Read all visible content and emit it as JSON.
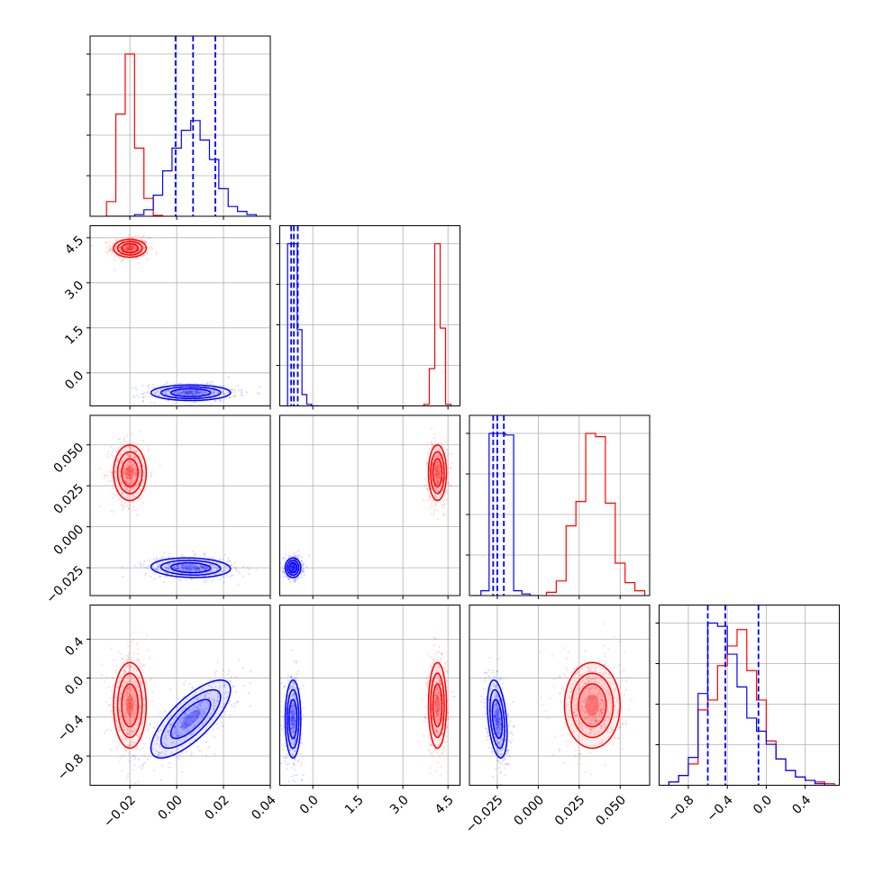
{
  "chart_data": {
    "type": "corner",
    "title": "",
    "grid": true,
    "legend": "none",
    "colors": {
      "red": "#ff0000",
      "blue": "#0000ff"
    },
    "params": [
      {
        "range": [
          -0.037,
          0.04
        ],
        "ticks": [
          -0.02,
          0.0,
          0.02,
          0.04
        ],
        "tick_labels": [
          "−0.02",
          "0.00",
          "0.02",
          "0.04"
        ]
      },
      {
        "range": [
          -1.1,
          4.9
        ],
        "ticks": [
          0.0,
          1.5,
          3.0,
          4.5
        ],
        "tick_labels": [
          "0.0",
          "1.5",
          "3.0",
          "4.5"
        ]
      },
      {
        "range": [
          -0.042,
          0.068
        ],
        "ticks": [
          -0.025,
          0.0,
          0.025,
          0.05
        ],
        "tick_labels": [
          "−0.025",
          "0.000",
          "0.025",
          "0.050"
        ]
      },
      {
        "range": [
          -1.1,
          0.75
        ],
        "ticks": [
          -0.8,
          -0.4,
          0.0,
          0.4
        ],
        "tick_labels": [
          "−0.8",
          "−0.4",
          "0.0",
          "0.4"
        ]
      }
    ],
    "series": [
      {
        "name": "",
        "color": "#ff0000",
        "histograms": [
          {
            "bin_edges": [
              -0.03,
              -0.026,
              -0.022,
              -0.018,
              -0.014,
              -0.01,
              -0.006
            ],
            "counts": [
              0.09,
              0.63,
              1.0,
              0.42,
              0.11,
              0.005
            ]
          },
          {
            "bin_edges": [
              3.7,
              3.88,
              4.06,
              4.24,
              4.42,
              4.6
            ],
            "counts": [
              0.01,
              0.23,
              1.0,
              0.48,
              0.01
            ]
          },
          {
            "bin_edges": [
              0.005,
              0.011,
              0.017,
              0.023,
              0.029,
              0.035,
              0.041,
              0.047,
              0.053,
              0.059,
              0.065
            ],
            "counts": [
              0.02,
              0.09,
              0.43,
              0.58,
              1.0,
              0.98,
              0.57,
              0.2,
              0.08,
              0.03
            ]
          },
          {
            "bin_edges": [
              -1.0,
              -0.9,
              -0.8,
              -0.7,
              -0.6,
              -0.5,
              -0.4,
              -0.3,
              -0.2,
              -0.1,
              0.0,
              0.1,
              0.2,
              0.3,
              0.4,
              0.5,
              0.6,
              0.7
            ],
            "counts": [
              0.02,
              0.06,
              0.13,
              0.46,
              0.52,
              0.73,
              0.85,
              0.95,
              0.7,
              0.52,
              0.27,
              0.16,
              0.09,
              0.05,
              0.03,
              0.02,
              0.01
            ]
          }
        ],
        "gaussians": {
          "mean": [
            -0.02,
            4.15,
            0.033,
            -0.28
          ],
          "std": [
            0.0035,
            0.15,
            0.0085,
            0.22
          ],
          "corr": [
            [
              1,
              0,
              0,
              0
            ],
            [
              0,
              1,
              0,
              0
            ],
            [
              0,
              0,
              1,
              0
            ],
            [
              0,
              0,
              0,
              1
            ]
          ]
        }
      },
      {
        "name": "",
        "color": "#0000ff",
        "histograms": [
          {
            "bin_edges": [
              -0.03,
              -0.026,
              -0.022,
              -0.018,
              -0.014,
              -0.01,
              -0.006,
              -0.002,
              0.002,
              0.006,
              0.01,
              0.014,
              0.018,
              0.022,
              0.026,
              0.03,
              0.034
            ],
            "counts": [
              0.0,
              0.0,
              0.0,
              0.01,
              0.04,
              0.13,
              0.28,
              0.42,
              0.53,
              0.59,
              0.47,
              0.35,
              0.17,
              0.06,
              0.03,
              0.01
            ]
          },
          {
            "bin_edges": [
              -1.0,
              -0.84,
              -0.68,
              -0.52,
              -0.36,
              -0.2,
              -0.04,
              0.2
            ],
            "counts": [
              0.0,
              1.0,
              1.0,
              0.47,
              0.07,
              0.01,
              0.0
            ]
          },
          {
            "bin_edges": [
              -0.04,
              -0.035,
              -0.03,
              -0.025,
              -0.02,
              -0.015,
              -0.01,
              -0.005,
              0.0
            ],
            "counts": [
              0.0,
              0.03,
              1.0,
              1.0,
              0.99,
              0.03,
              0.01,
              0.0
            ]
          },
          {
            "bin_edges": [
              -1.0,
              -0.9,
              -0.8,
              -0.7,
              -0.6,
              -0.5,
              -0.4,
              -0.3,
              -0.2,
              -0.1,
              0.0,
              0.1,
              0.2,
              0.3,
              0.4,
              0.5,
              0.6,
              0.7
            ],
            "counts": [
              0.02,
              0.06,
              0.17,
              0.56,
              0.99,
              0.97,
              0.8,
              0.6,
              0.41,
              0.33,
              0.25,
              0.16,
              0.09,
              0.05,
              0.03,
              0.01,
              0.0
            ]
          }
        ],
        "quantiles": [
          [
            -0.0005,
            0.007,
            0.0165
          ],
          [
            -0.72,
            -0.63,
            -0.5
          ],
          [
            -0.0275,
            -0.025,
            -0.021
          ],
          [
            -0.6,
            -0.42,
            -0.08
          ]
        ],
        "gaussians": {
          "mean": [
            0.006,
            -0.66,
            -0.025,
            -0.42
          ],
          "std": [
            0.0085,
            0.13,
            0.003,
            0.2
          ],
          "corr": [
            [
              1,
              0,
              -0.1,
              0.75
            ],
            [
              0,
              1,
              0,
              0
            ],
            [
              -0.1,
              0,
              1,
              -0.35
            ],
            [
              0.75,
              0,
              -0.35,
              1
            ]
          ]
        }
      }
    ]
  }
}
